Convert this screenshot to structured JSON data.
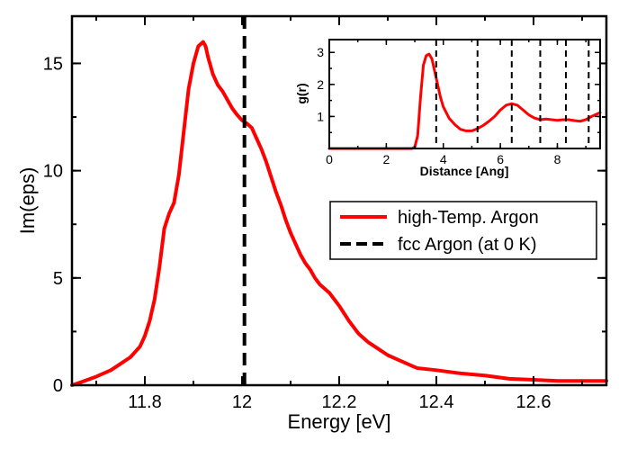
{
  "chart_data": [
    {
      "type": "line",
      "title": "",
      "xlabel": "Energy [eV]",
      "ylabel": "Im(eps)",
      "xlim": [
        11.65,
        12.75
      ],
      "ylim": [
        0,
        17.2
      ],
      "xticks": [
        11.8,
        12.0,
        12.2,
        12.4,
        12.6
      ],
      "xtick_labels": [
        "11.8",
        "12",
        "12.2",
        "12.4",
        "12.6"
      ],
      "yticks": [
        0,
        5,
        10,
        15
      ],
      "ytick_labels": [
        "0",
        "5",
        "10",
        "15"
      ],
      "grid": false,
      "legend": "center-right",
      "series": [
        {
          "name": "high-Temp. Argon",
          "color": "#ff0000",
          "style": "solid",
          "x": [
            11.65,
            11.67,
            11.7,
            11.73,
            11.75,
            11.77,
            11.79,
            11.8,
            11.81,
            11.82,
            11.83,
            11.84,
            11.85,
            11.86,
            11.87,
            11.88,
            11.89,
            11.9,
            11.91,
            11.915,
            11.92,
            11.925,
            11.93,
            11.94,
            11.95,
            11.96,
            11.97,
            11.98,
            11.99,
            12.0,
            12.01,
            12.02,
            12.03,
            12.04,
            12.05,
            12.06,
            12.07,
            12.08,
            12.09,
            12.1,
            12.11,
            12.12,
            12.13,
            12.14,
            12.15,
            12.16,
            12.18,
            12.2,
            12.22,
            12.24,
            12.26,
            12.28,
            12.3,
            12.32,
            12.34,
            12.36,
            12.4,
            12.45,
            12.5,
            12.55,
            12.6,
            12.65,
            12.7,
            12.75
          ],
          "y": [
            0,
            0.15,
            0.4,
            0.7,
            1.0,
            1.3,
            1.8,
            2.3,
            3.0,
            4.0,
            5.5,
            7.3,
            8.0,
            8.5,
            9.8,
            11.8,
            13.8,
            15.0,
            15.8,
            15.9,
            16.0,
            15.8,
            15.3,
            14.5,
            14.0,
            13.7,
            13.3,
            12.9,
            12.6,
            12.35,
            12.2,
            12.0,
            11.5,
            11.0,
            10.4,
            9.7,
            9.0,
            8.4,
            7.7,
            7.1,
            6.6,
            6.1,
            5.7,
            5.4,
            5.0,
            4.7,
            4.3,
            3.7,
            3.0,
            2.4,
            2.0,
            1.7,
            1.4,
            1.2,
            1.0,
            0.8,
            0.7,
            0.55,
            0.45,
            0.3,
            0.25,
            0.2,
            0.2,
            0.2
          ]
        }
      ],
      "vlines": [
        {
          "name": "fcc Argon (at 0 K)",
          "x": 12.005,
          "color": "#000000",
          "style": "dashed"
        }
      ]
    },
    {
      "type": "line",
      "title": "",
      "xlabel": "Distance [Ang]",
      "ylabel": "g(r)",
      "xlim": [
        0,
        9.5
      ],
      "ylim": [
        0,
        3.4
      ],
      "xticks": [
        0,
        2,
        4,
        6,
        8
      ],
      "xtick_labels": [
        "0",
        "2",
        "4",
        "6",
        "8"
      ],
      "yticks": [
        1,
        2,
        3
      ],
      "ytick_labels": [
        "1",
        "2",
        "3"
      ],
      "grid": false,
      "series": [
        {
          "color": "#ff0000",
          "style": "solid",
          "x": [
            0,
            2.9,
            3.0,
            3.1,
            3.2,
            3.3,
            3.4,
            3.5,
            3.6,
            3.7,
            3.8,
            3.9,
            4.0,
            4.2,
            4.4,
            4.6,
            4.8,
            5.0,
            5.2,
            5.4,
            5.6,
            5.8,
            6.0,
            6.2,
            6.4,
            6.6,
            6.8,
            7.0,
            7.2,
            7.4,
            7.6,
            7.8,
            8.0,
            8.2,
            8.4,
            8.6,
            8.8,
            9.0,
            9.2,
            9.5
          ],
          "y": [
            0,
            0,
            0.05,
            0.4,
            1.6,
            2.6,
            2.9,
            2.95,
            2.8,
            2.4,
            2.0,
            1.6,
            1.3,
            0.95,
            0.75,
            0.6,
            0.55,
            0.55,
            0.62,
            0.72,
            0.85,
            1.0,
            1.2,
            1.35,
            1.4,
            1.35,
            1.2,
            1.05,
            0.95,
            0.9,
            0.92,
            0.9,
            0.88,
            0.9,
            0.9,
            0.87,
            0.85,
            0.9,
            1.0,
            1.12
          ]
        }
      ],
      "vlines": [
        {
          "x": 3.75,
          "color": "#000000",
          "style": "dashed"
        },
        {
          "x": 5.2,
          "color": "#000000",
          "style": "dashed"
        },
        {
          "x": 6.4,
          "color": "#000000",
          "style": "dashed"
        },
        {
          "x": 7.4,
          "color": "#000000",
          "style": "dashed"
        },
        {
          "x": 8.3,
          "color": "#000000",
          "style": "dashed"
        },
        {
          "x": 9.1,
          "color": "#000000",
          "style": "dashed"
        }
      ]
    }
  ]
}
